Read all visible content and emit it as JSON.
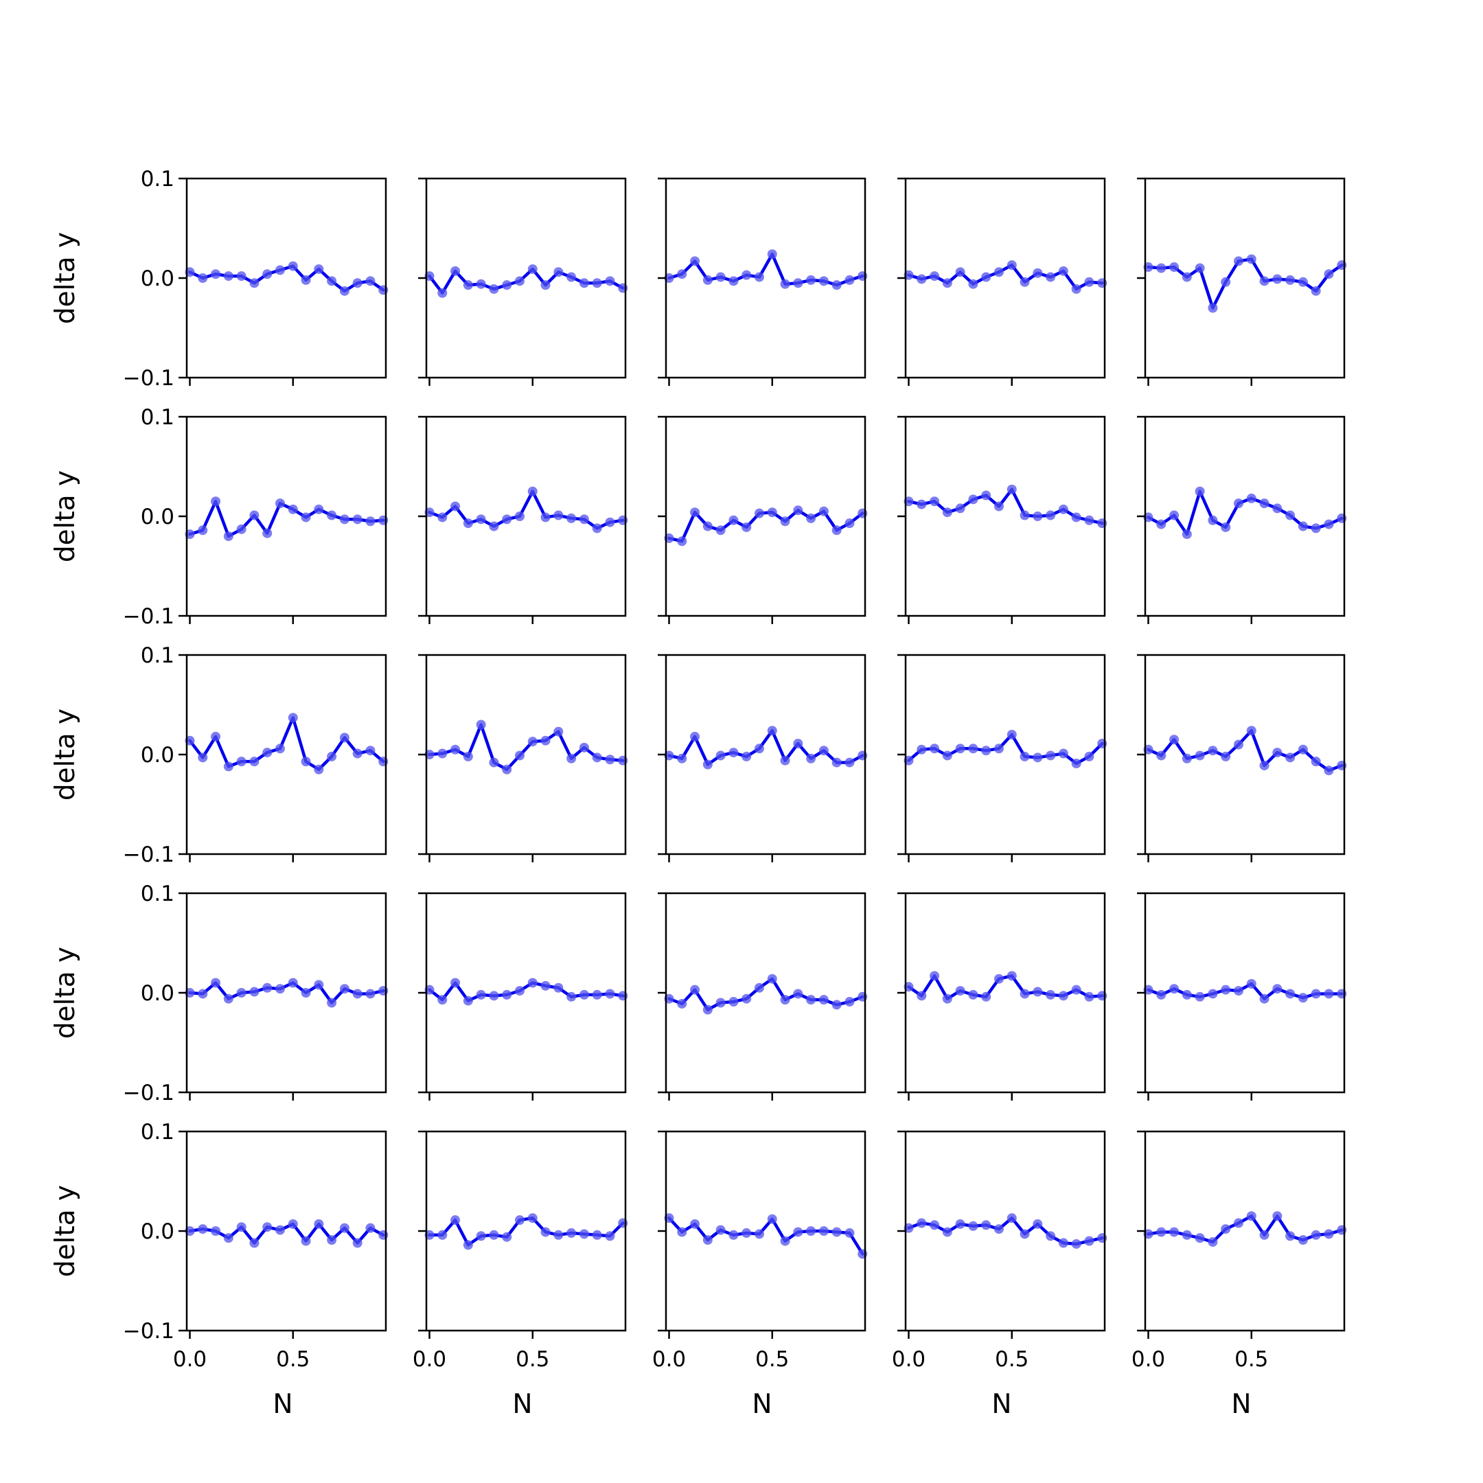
{
  "chart_data": {
    "type": "line",
    "layout": "5x5 grid of subplots",
    "xlabel": "N",
    "ylabel": "delta y",
    "ylim": [
      -0.1,
      0.1
    ],
    "xlim": [
      -0.015,
      0.95
    ],
    "yticks": [
      -0.1,
      0.0,
      0.1
    ],
    "ytick_labels": [
      "−0.1",
      "0.0",
      "0.1"
    ],
    "xticks": [
      0.0,
      0.5
    ],
    "xtick_labels": [
      "0.0",
      "0.5"
    ],
    "grid": false,
    "colors": {
      "line": "#0000ee",
      "marker": "#5050ee"
    },
    "x": [
      0.0,
      0.0625,
      0.125,
      0.1875,
      0.25,
      0.3125,
      0.375,
      0.4375,
      0.5,
      0.5625,
      0.625,
      0.6875,
      0.75,
      0.8125,
      0.875,
      0.9375
    ],
    "subplots": [
      {
        "row": 0,
        "col": 0,
        "y": [
          0.006,
          0.0,
          0.004,
          0.002,
          0.002,
          -0.005,
          0.004,
          0.008,
          0.012,
          -0.002,
          0.009,
          -0.003,
          -0.013,
          -0.005,
          -0.003,
          -0.012
        ]
      },
      {
        "row": 0,
        "col": 1,
        "y": [
          0.002,
          -0.015,
          0.007,
          -0.007,
          -0.006,
          -0.011,
          -0.007,
          -0.003,
          0.009,
          -0.007,
          0.006,
          0.001,
          -0.005,
          -0.005,
          -0.003,
          -0.01
        ]
      },
      {
        "row": 0,
        "col": 2,
        "y": [
          0.0,
          0.004,
          0.017,
          -0.002,
          0.001,
          -0.003,
          0.003,
          0.001,
          0.024,
          -0.006,
          -0.005,
          -0.002,
          -0.003,
          -0.007,
          -0.002,
          0.002
        ]
      },
      {
        "row": 0,
        "col": 3,
        "y": [
          0.003,
          -0.001,
          0.002,
          -0.005,
          0.006,
          -0.006,
          0.001,
          0.006,
          0.013,
          -0.004,
          0.005,
          0.001,
          0.007,
          -0.011,
          -0.004,
          -0.005
        ]
      },
      {
        "row": 0,
        "col": 4,
        "y": [
          0.011,
          0.01,
          0.011,
          0.001,
          0.01,
          -0.03,
          -0.004,
          0.017,
          0.019,
          -0.003,
          -0.001,
          -0.002,
          -0.004,
          -0.013,
          0.004,
          0.013
        ]
      },
      {
        "row": 1,
        "col": 0,
        "y": [
          -0.018,
          -0.014,
          0.015,
          -0.02,
          -0.013,
          0.001,
          -0.017,
          0.013,
          0.007,
          -0.001,
          0.007,
          0.001,
          -0.003,
          -0.003,
          -0.005,
          -0.004
        ]
      },
      {
        "row": 1,
        "col": 1,
        "y": [
          0.004,
          -0.001,
          0.01,
          -0.007,
          -0.003,
          -0.01,
          -0.003,
          0.0,
          0.025,
          -0.001,
          0.001,
          -0.002,
          -0.003,
          -0.012,
          -0.006,
          -0.004
        ]
      },
      {
        "row": 1,
        "col": 2,
        "y": [
          -0.022,
          -0.025,
          0.004,
          -0.01,
          -0.014,
          -0.004,
          -0.011,
          0.003,
          0.004,
          -0.005,
          0.006,
          -0.002,
          0.005,
          -0.014,
          -0.007,
          0.003
        ]
      },
      {
        "row": 1,
        "col": 3,
        "y": [
          0.015,
          0.012,
          0.015,
          0.004,
          0.008,
          0.017,
          0.021,
          0.01,
          0.027,
          0.001,
          0.0,
          0.001,
          0.007,
          -0.001,
          -0.004,
          -0.007
        ]
      },
      {
        "row": 1,
        "col": 4,
        "y": [
          -0.001,
          -0.008,
          0.001,
          -0.018,
          0.025,
          -0.004,
          -0.011,
          0.013,
          0.018,
          0.013,
          0.008,
          0.001,
          -0.01,
          -0.012,
          -0.008,
          -0.002
        ]
      },
      {
        "row": 2,
        "col": 0,
        "y": [
          0.014,
          -0.003,
          0.018,
          -0.012,
          -0.007,
          -0.007,
          0.002,
          0.006,
          0.037,
          -0.007,
          -0.015,
          -0.002,
          0.017,
          0.001,
          0.004,
          -0.007
        ]
      },
      {
        "row": 2,
        "col": 1,
        "y": [
          0.0,
          0.001,
          0.005,
          -0.002,
          0.03,
          -0.008,
          -0.015,
          -0.001,
          0.013,
          0.014,
          0.023,
          -0.004,
          0.007,
          -0.003,
          -0.005,
          -0.006
        ]
      },
      {
        "row": 2,
        "col": 2,
        "y": [
          -0.001,
          -0.004,
          0.018,
          -0.01,
          -0.001,
          0.002,
          -0.002,
          0.006,
          0.024,
          -0.006,
          0.011,
          -0.004,
          0.004,
          -0.008,
          -0.008,
          -0.001
        ]
      },
      {
        "row": 2,
        "col": 3,
        "y": [
          -0.006,
          0.005,
          0.006,
          -0.001,
          0.006,
          0.006,
          0.004,
          0.006,
          0.02,
          -0.002,
          -0.003,
          -0.001,
          0.001,
          -0.009,
          -0.002,
          0.011
        ]
      },
      {
        "row": 2,
        "col": 4,
        "y": [
          0.005,
          -0.001,
          0.015,
          -0.004,
          -0.001,
          0.004,
          -0.002,
          0.01,
          0.024,
          -0.011,
          0.002,
          -0.003,
          0.005,
          -0.007,
          -0.016,
          -0.011
        ]
      },
      {
        "row": 3,
        "col": 0,
        "y": [
          0.0,
          -0.001,
          0.01,
          -0.006,
          0.0,
          0.001,
          0.005,
          0.004,
          0.01,
          0.0,
          0.008,
          -0.01,
          0.004,
          -0.001,
          -0.001,
          0.002
        ]
      },
      {
        "row": 3,
        "col": 1,
        "y": [
          0.003,
          -0.007,
          0.01,
          -0.008,
          -0.002,
          -0.003,
          -0.002,
          0.002,
          0.01,
          0.007,
          0.005,
          -0.004,
          -0.002,
          -0.002,
          -0.001,
          -0.003
        ]
      },
      {
        "row": 3,
        "col": 2,
        "y": [
          -0.006,
          -0.011,
          0.003,
          -0.017,
          -0.01,
          -0.009,
          -0.006,
          0.005,
          0.014,
          -0.007,
          -0.001,
          -0.007,
          -0.007,
          -0.012,
          -0.009,
          -0.004
        ]
      },
      {
        "row": 3,
        "col": 3,
        "y": [
          0.006,
          -0.003,
          0.017,
          -0.006,
          0.002,
          -0.002,
          -0.004,
          0.014,
          0.017,
          -0.001,
          0.001,
          -0.002,
          -0.003,
          0.003,
          -0.004,
          -0.003
        ]
      },
      {
        "row": 3,
        "col": 4,
        "y": [
          0.003,
          -0.002,
          0.004,
          -0.002,
          -0.004,
          -0.001,
          0.003,
          0.002,
          0.009,
          -0.006,
          0.004,
          -0.001,
          -0.005,
          -0.001,
          -0.001,
          -0.001
        ]
      },
      {
        "row": 4,
        "col": 0,
        "y": [
          0.0,
          0.002,
          0.0,
          -0.007,
          0.004,
          -0.012,
          0.004,
          0.001,
          0.007,
          -0.01,
          0.007,
          -0.009,
          0.003,
          -0.012,
          0.003,
          -0.004
        ]
      },
      {
        "row": 4,
        "col": 1,
        "y": [
          -0.004,
          -0.004,
          0.011,
          -0.014,
          -0.005,
          -0.004,
          -0.006,
          0.011,
          0.013,
          -0.001,
          -0.004,
          -0.002,
          -0.003,
          -0.004,
          -0.005,
          0.008
        ]
      },
      {
        "row": 4,
        "col": 2,
        "y": [
          0.013,
          -0.001,
          0.007,
          -0.009,
          0.001,
          -0.004,
          -0.002,
          -0.003,
          0.012,
          -0.01,
          -0.001,
          0.0,
          0.0,
          -0.001,
          -0.002,
          -0.023
        ]
      },
      {
        "row": 4,
        "col": 3,
        "y": [
          0.003,
          0.008,
          0.006,
          -0.001,
          0.007,
          0.005,
          0.006,
          0.002,
          0.013,
          -0.003,
          0.007,
          -0.005,
          -0.012,
          -0.013,
          -0.01,
          -0.007
        ]
      },
      {
        "row": 4,
        "col": 4,
        "y": [
          -0.003,
          -0.001,
          -0.001,
          -0.004,
          -0.007,
          -0.011,
          0.002,
          0.008,
          0.015,
          -0.004,
          0.015,
          -0.005,
          -0.009,
          -0.004,
          -0.003,
          0.001
        ]
      }
    ]
  }
}
